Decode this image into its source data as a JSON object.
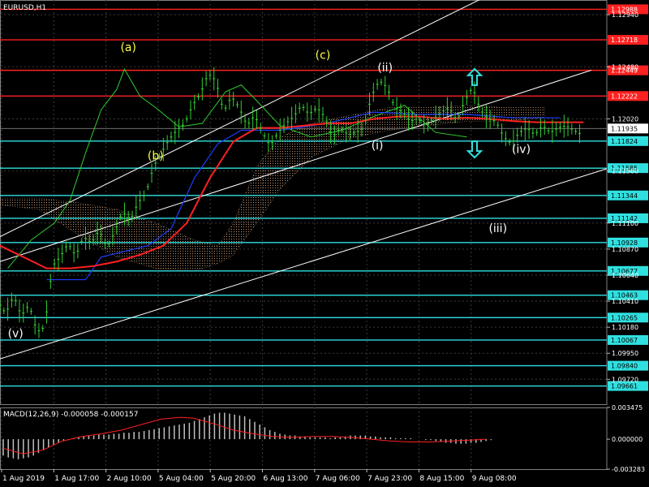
{
  "chart_title": "EURUSD,H1",
  "colors": {
    "background": "#000000",
    "grid": "#3a3a3a",
    "bullish": "#32cd32",
    "red_line": "#ff2020",
    "blue_line": "#1e3cff",
    "green_line": "#2ecc2e",
    "cloud": "#d2a07a",
    "resistance": "#ff2020",
    "support": "#30e0e0",
    "channel": "#ffffff",
    "wave_yellow": "#ffff40",
    "wave_white": "#ffffff",
    "macd_hist": "#c0c0c0",
    "macd_signal": "#ff2020"
  },
  "chart_data": {
    "type": "candlestick",
    "symbol": "EURUSD",
    "timeframe": "H1",
    "ylim": [
      1.095,
      1.1307
    ],
    "grid": true,
    "x_ticks": [
      "1 Aug 2019",
      "1 Aug 17:00",
      "2 Aug 10:00",
      "5 Aug 04:00",
      "5 Aug 20:00",
      "6 Aug 13:00",
      "7 Aug 06:00",
      "7 Aug 23:00",
      "8 Aug 15:00",
      "9 Aug 08:00"
    ],
    "y_ticks": [
      "1.12940",
      "1.12480",
      "1.12020",
      "1.11560",
      "1.11100",
      "1.10870",
      "1.10640",
      "1.10410",
      "1.10180",
      "1.09950",
      "1.09720"
    ],
    "current_price": "1.11935",
    "red_levels": [
      "1.12988",
      "1.12718",
      "1.12449",
      "1.12222"
    ],
    "cyan_levels": [
      "1.11824",
      "1.11585",
      "1.11344",
      "1.11142",
      "1.10928",
      "1.10677",
      "1.10463",
      "1.10265",
      "1.10067",
      "1.09840",
      "1.09661"
    ],
    "price_path": [
      [
        0,
        1.104
      ],
      [
        2,
        1.103
      ],
      [
        4,
        1.1046
      ],
      [
        6,
        1.1028
      ],
      [
        8,
        1.1038
      ],
      [
        10,
        1.1014
      ],
      [
        12,
        1.1018
      ],
      [
        14,
        1.1072
      ],
      [
        16,
        1.108
      ],
      [
        18,
        1.1092
      ],
      [
        20,
        1.1081
      ],
      [
        22,
        1.1098
      ],
      [
        24,
        1.1092
      ],
      [
        26,
        1.1104
      ],
      [
        28,
        1.1088
      ],
      [
        30,
        1.1102
      ],
      [
        32,
        1.112
      ],
      [
        34,
        1.1112
      ],
      [
        36,
        1.1128
      ],
      [
        38,
        1.1136
      ],
      [
        40,
        1.116
      ],
      [
        42,
        1.1172
      ],
      [
        44,
        1.1184
      ],
      [
        46,
        1.1192
      ],
      [
        48,
        1.1198
      ],
      [
        50,
        1.1214
      ],
      [
        52,
        1.1224
      ],
      [
        54,
        1.1242
      ],
      [
        56,
        1.1236
      ],
      [
        58,
        1.1208
      ],
      [
        60,
        1.1222
      ],
      [
        62,
        1.1212
      ],
      [
        64,
        1.1196
      ],
      [
        66,
        1.1205
      ],
      [
        68,
        1.119
      ],
      [
        70,
        1.1178
      ],
      [
        72,
        1.119
      ],
      [
        74,
        1.1198
      ],
      [
        76,
        1.1204
      ],
      [
        78,
        1.1214
      ],
      [
        80,
        1.1206
      ],
      [
        82,
        1.1212
      ],
      [
        84,
        1.1204
      ],
      [
        86,
        1.1186
      ],
      [
        88,
        1.1194
      ],
      [
        90,
        1.1188
      ],
      [
        92,
        1.119
      ],
      [
        94,
        1.1194
      ],
      [
        96,
        1.1222
      ],
      [
        98,
        1.1236
      ],
      [
        100,
        1.123
      ],
      [
        102,
        1.1212
      ],
      [
        104,
        1.1208
      ],
      [
        106,
        1.12
      ],
      [
        108,
        1.1202
      ],
      [
        110,
        1.1196
      ],
      [
        112,
        1.1202
      ],
      [
        114,
        1.1208
      ],
      [
        116,
        1.1212
      ],
      [
        118,
        1.12
      ],
      [
        120,
        1.1218
      ],
      [
        122,
        1.123
      ],
      [
        124,
        1.121
      ],
      [
        126,
        1.1202
      ],
      [
        128,
        1.12
      ],
      [
        130,
        1.1186
      ],
      [
        132,
        1.118
      ],
      [
        134,
        1.119
      ],
      [
        136,
        1.1194
      ],
      [
        138,
        1.1188
      ],
      [
        140,
        1.1196
      ],
      [
        142,
        1.119
      ],
      [
        144,
        1.1194
      ],
      [
        146,
        1.1196
      ],
      [
        148,
        1.1192
      ],
      [
        150,
        1.1188
      ]
    ],
    "red_ma": [
      [
        0,
        1.109
      ],
      [
        6,
        1.108
      ],
      [
        12,
        1.107
      ],
      [
        18,
        1.107
      ],
      [
        24,
        1.1072
      ],
      [
        30,
        1.1076
      ],
      [
        36,
        1.1082
      ],
      [
        42,
        1.109
      ],
      [
        48,
        1.111
      ],
      [
        54,
        1.115
      ],
      [
        60,
        1.1182
      ],
      [
        66,
        1.1194
      ],
      [
        72,
        1.1194
      ],
      [
        78,
        1.1196
      ],
      [
        84,
        1.1198
      ],
      [
        90,
        1.1198
      ],
      [
        96,
        1.1202
      ],
      [
        102,
        1.1204
      ],
      [
        108,
        1.1204
      ],
      [
        114,
        1.1202
      ],
      [
        120,
        1.1203
      ],
      [
        126,
        1.1202
      ],
      [
        132,
        1.12
      ],
      [
        138,
        1.1199
      ],
      [
        144,
        1.1199
      ],
      [
        150,
        1.1199
      ]
    ],
    "blue_line": [
      [
        12,
        1.106
      ],
      [
        22,
        1.106
      ],
      [
        26,
        1.108
      ],
      [
        38,
        1.109
      ],
      [
        44,
        1.1105
      ],
      [
        50,
        1.115
      ],
      [
        56,
        1.118
      ],
      [
        62,
        1.1192
      ],
      [
        72,
        1.1192
      ],
      [
        78,
        1.1195
      ],
      [
        84,
        1.1198
      ],
      [
        96,
        1.1208
      ],
      [
        108,
        1.1206
      ],
      [
        120,
        1.1206
      ],
      [
        132,
        1.1203
      ],
      [
        144,
        1.1203
      ]
    ],
    "green_line": [
      [
        2,
        1.107
      ],
      [
        8,
        1.1095
      ],
      [
        14,
        1.111
      ],
      [
        18,
        1.113
      ],
      [
        22,
        1.1172
      ],
      [
        26,
        1.121
      ],
      [
        30,
        1.1228
      ],
      [
        32,
        1.1246
      ],
      [
        36,
        1.1222
      ],
      [
        40,
        1.1212
      ],
      [
        46,
        1.1195
      ],
      [
        52,
        1.1198
      ],
      [
        58,
        1.1226
      ],
      [
        62,
        1.1232
      ],
      [
        66,
        1.1218
      ],
      [
        72,
        1.1196
      ],
      [
        80,
        1.1186
      ],
      [
        88,
        1.1192
      ],
      [
        96,
        1.1204
      ],
      [
        104,
        1.1214
      ],
      [
        112,
        1.119
      ],
      [
        120,
        1.1186
      ]
    ],
    "cloud_upper": [
      [
        0,
        1.1132
      ],
      [
        10,
        1.1132
      ],
      [
        20,
        1.1128
      ],
      [
        30,
        1.1122
      ],
      [
        40,
        1.111
      ],
      [
        50,
        1.1095
      ],
      [
        56,
        1.109
      ],
      [
        60,
        1.111
      ],
      [
        66,
        1.116
      ],
      [
        72,
        1.1186
      ],
      [
        80,
        1.1198
      ],
      [
        90,
        1.1205
      ],
      [
        100,
        1.1212
      ],
      [
        110,
        1.1212
      ],
      [
        120,
        1.1214
      ],
      [
        130,
        1.1212
      ],
      [
        140,
        1.1212
      ]
    ],
    "cloud_lower": [
      [
        0,
        1.1126
      ],
      [
        10,
        1.1122
      ],
      [
        20,
        1.11
      ],
      [
        30,
        1.108
      ],
      [
        40,
        1.107
      ],
      [
        50,
        1.1068
      ],
      [
        56,
        1.1074
      ],
      [
        60,
        1.1082
      ],
      [
        66,
        1.111
      ],
      [
        72,
        1.114
      ],
      [
        80,
        1.1168
      ],
      [
        90,
        1.1185
      ],
      [
        100,
        1.1192
      ],
      [
        110,
        1.1196
      ],
      [
        120,
        1.12
      ],
      [
        130,
        1.12
      ],
      [
        140,
        1.1203
      ]
    ],
    "channel_lines": [
      {
        "from": [
          0,
          1.1098
        ],
        "to": [
          129,
          1.1317
        ]
      },
      {
        "from": [
          0,
          1.099
        ],
        "to": [
          156,
          1.1158
        ]
      },
      {
        "from": [
          0,
          1.1076
        ],
        "to": [
          152,
          1.1245
        ]
      }
    ],
    "wave_labels": [
      {
        "text": "(a)",
        "x": 33,
        "y": 1.1262,
        "color": "yellow"
      },
      {
        "text": "(b)",
        "x": 40,
        "y": 1.1166,
        "color": "yellow"
      },
      {
        "text": "(c)",
        "x": 83,
        "y": 1.1255,
        "color": "yellow"
      },
      {
        "text": "(ii)",
        "x": 99,
        "y": 1.1244,
        "color": "white"
      },
      {
        "text": "(i)",
        "x": 97,
        "y": 1.1175,
        "color": "white"
      },
      {
        "text": "(iv)",
        "x": 134,
        "y": 1.1172,
        "color": "white"
      },
      {
        "text": "(iii)",
        "x": 128,
        "y": 1.1102,
        "color": "white"
      },
      {
        "text": "(v)",
        "x": 4,
        "y": 1.1009,
        "color": "white"
      }
    ],
    "arrows": [
      {
        "dir": "up",
        "x": 122,
        "y": 1.1239
      },
      {
        "dir": "down",
        "x": 122,
        "y": 1.1175
      }
    ],
    "macd": {
      "label": "MACD(12,26,9) -0.000058 -0.000157",
      "ylim": [
        -0.003283,
        0.003475
      ],
      "ticks": [
        "0.003475",
        "0.000000",
        "-0.003283"
      ],
      "histogram": [
        -0.0018,
        -0.002,
        -0.0021,
        -0.0022,
        -0.0021,
        -0.002,
        -0.0018,
        -0.0015,
        -0.0012,
        -0.0009,
        -0.0006,
        -0.0004,
        -0.0002,
        -0.0001,
        0.0001,
        0.0002,
        0.0003,
        0.0004,
        0.0004,
        0.0005,
        0.0005,
        0.0005,
        0.0006,
        0.0006,
        0.0007,
        0.0007,
        0.0008,
        0.0008,
        0.0009,
        0.001,
        0.0011,
        0.0012,
        0.0013,
        0.0014,
        0.0015,
        0.0016,
        0.0017,
        0.0018,
        0.002,
        0.0022,
        0.0024,
        0.0026,
        0.0028,
        0.0029,
        0.0029,
        0.0028,
        0.0027,
        0.0026,
        0.0025,
        0.0022,
        0.0019,
        0.0016,
        0.0013,
        0.001,
        0.0008,
        0.0006,
        0.0005,
        0.0004,
        0.0004,
        0.0003,
        0.0003,
        0.0002,
        0.0002,
        0.0002,
        0.0002,
        0.0001,
        0.0002,
        0.0002,
        0.0003,
        0.0004,
        0.0004,
        0.0004,
        0.0004,
        0.0003,
        0.0003,
        0.0002,
        0.0002,
        0.0002,
        0.0001,
        0.0001,
        0.0001,
        0.0001,
        0.0,
        0.0,
        -0.0001,
        -0.0001,
        -0.0002,
        -0.0003,
        -0.0004,
        -0.0004,
        -0.0005,
        -0.0005,
        -0.0005,
        -0.0004,
        -0.0004,
        -0.0003,
        -0.0002,
        -0.0001
      ],
      "signal": [
        [
          0,
          -0.001
        ],
        [
          6,
          -0.0016
        ],
        [
          12,
          -0.0012
        ],
        [
          18,
          -0.0002
        ],
        [
          24,
          0.0003
        ],
        [
          30,
          0.0006
        ],
        [
          36,
          0.001
        ],
        [
          42,
          0.0016
        ],
        [
          48,
          0.0022
        ],
        [
          54,
          0.0024
        ],
        [
          58,
          0.0023
        ],
        [
          64,
          0.0017
        ],
        [
          70,
          0.001
        ],
        [
          76,
          0.0006
        ],
        [
          82,
          0.0003
        ],
        [
          88,
          0.0002
        ],
        [
          94,
          0.0003
        ],
        [
          100,
          0.0003
        ],
        [
          106,
          0.0002
        ],
        [
          112,
          0.0
        ],
        [
          118,
          -0.0002
        ],
        [
          124,
          -0.0003
        ],
        [
          130,
          -0.0003
        ],
        [
          136,
          -0.0002
        ],
        [
          142,
          -0.0001
        ],
        [
          147,
          0.0
        ]
      ]
    }
  }
}
